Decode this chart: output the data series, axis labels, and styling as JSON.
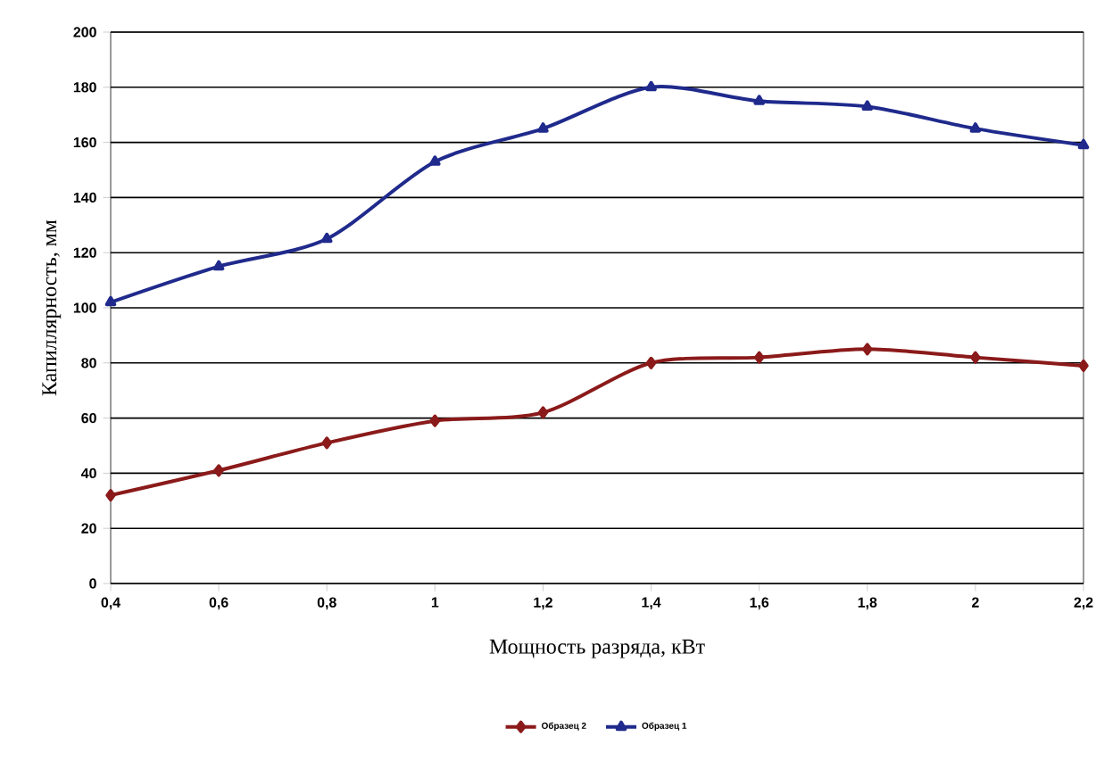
{
  "chart_data": {
    "type": "line",
    "xlabel": "Мощность разряда, кВт",
    "ylabel": "Капиллярность, мм",
    "x": [
      0.4,
      0.6,
      0.8,
      1.0,
      1.2,
      1.4,
      1.6,
      1.8,
      2.0,
      2.2
    ],
    "series": [
      {
        "name": "Образец 2",
        "color": "#8b1a1a",
        "marker": "diamond",
        "values": [
          32,
          41,
          51,
          59,
          62,
          80,
          82,
          85,
          82,
          79
        ]
      },
      {
        "name": "Образец 1",
        "color": "#1f2a8c",
        "marker": "triangle",
        "values": [
          102,
          115,
          125,
          153,
          165,
          180,
          175,
          173,
          165,
          159
        ]
      }
    ],
    "xlim": [
      0.4,
      2.2
    ],
    "xticks": [
      {
        "value": 0.4,
        "label": "0,4"
      },
      {
        "value": 0.6,
        "label": "0,6"
      },
      {
        "value": 0.8,
        "label": "0,8"
      },
      1,
      {
        "value": 1.2,
        "label": "1,2"
      },
      {
        "value": 1.4,
        "label": "1,4"
      },
      {
        "value": 1.6,
        "label": "1,6"
      },
      {
        "value": 1.8,
        "label": "1,8"
      },
      2,
      {
        "value": 2.2,
        "label": "2,2"
      }
    ],
    "ylim": [
      0,
      200
    ],
    "yticks": [
      0,
      20,
      40,
      60,
      80,
      100,
      120,
      140,
      160,
      180,
      200
    ],
    "grid": "y",
    "legend": "bottom",
    "line_style": "solid"
  }
}
